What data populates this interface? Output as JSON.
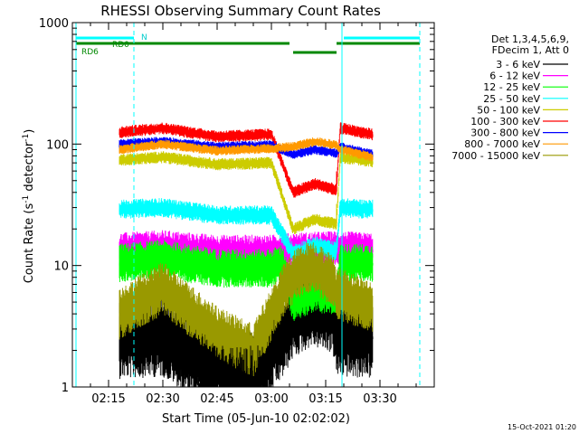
{
  "chart_data": {
    "type": "line",
    "title": "RHESSI Observing Summary Count Rates",
    "xlabel": "Start Time (05-Jun-10 02:02:02)",
    "ylabel_main": "Count Rate (s",
    "ylabel_sup1": "-1",
    "ylabel_mid": " detector",
    "ylabel_sup2": "-1",
    "ylabel_end": ")",
    "y_scale": "log",
    "ylim": [
      1,
      1000
    ],
    "xlim_minutes": [
      125,
      225
    ],
    "x_ticks": [
      {
        "m": 135,
        "label": "02:15"
      },
      {
        "m": 150,
        "label": "02:30"
      },
      {
        "m": 165,
        "label": "02:45"
      },
      {
        "m": 180,
        "label": "03:00"
      },
      {
        "m": 195,
        "label": "03:15"
      },
      {
        "m": 210,
        "label": "03:30"
      }
    ],
    "y_ticks": [
      {
        "v": 1,
        "label": "1"
      },
      {
        "v": 10,
        "label": "10"
      },
      {
        "v": 100,
        "label": "100"
      },
      {
        "v": 1000,
        "label": "1000"
      }
    ],
    "legend_placement": "right",
    "legend_header": [
      "Det 1,3,4,5,6,9,",
      "FDecim 1, Att 0"
    ],
    "data_start_minutes": 138,
    "data_end_minutes": 208,
    "night_start_minutes": 186,
    "night_end_minutes": 198,
    "series": [
      {
        "name": "3 - 6 keV",
        "color": "#000000",
        "curve": [
          [
            138,
            2.6
          ],
          [
            150,
            2.7
          ],
          [
            163,
            1.5
          ],
          [
            175,
            1.3
          ],
          [
            183,
            2.6
          ],
          [
            186,
            3.8
          ],
          [
            191,
            4.8
          ],
          [
            197,
            4.2
          ],
          [
            198,
            2.7
          ],
          [
            208,
            2.6
          ]
        ],
        "jitter": 0.35
      },
      {
        "name": "6 - 12 keV",
        "color": "#ff00ff",
        "curve": [
          [
            138,
            13.5
          ],
          [
            150,
            14.2
          ],
          [
            165,
            13.0
          ],
          [
            180,
            13.0
          ],
          [
            186,
            13.5
          ],
          [
            198,
            14.0
          ],
          [
            208,
            13.5
          ]
        ],
        "jitter": 0.14
      },
      {
        "name": "12 - 25 keV",
        "color": "#00ff00",
        "curve": [
          [
            138,
            10.5
          ],
          [
            150,
            11.3
          ],
          [
            165,
            9.5
          ],
          [
            180,
            9.5
          ],
          [
            183,
            10.5
          ],
          [
            186,
            5.0
          ],
          [
            192,
            6.0
          ],
          [
            198,
            5.5
          ],
          [
            199,
            10.5
          ],
          [
            208,
            10.5
          ]
        ],
        "jitter": 0.16
      },
      {
        "name": "25 - 50 keV",
        "color": "#00ffff",
        "curve": [
          [
            138,
            29
          ],
          [
            150,
            30
          ],
          [
            165,
            26
          ],
          [
            180,
            26
          ],
          [
            186,
            12.5
          ],
          [
            192,
            14.5
          ],
          [
            198,
            13.0
          ],
          [
            199,
            30
          ],
          [
            208,
            29
          ]
        ],
        "jitter": 0.08
      },
      {
        "name": "50 - 100 keV",
        "color": "#cccc00",
        "curve": [
          [
            138,
            74
          ],
          [
            150,
            78
          ],
          [
            165,
            68
          ],
          [
            180,
            70
          ],
          [
            186,
            20
          ],
          [
            192,
            24
          ],
          [
            198,
            22
          ],
          [
            199,
            78
          ],
          [
            208,
            72
          ]
        ],
        "jitter": 0.05
      },
      {
        "name": "100 - 300 keV",
        "color": "#ff0000",
        "curve": [
          [
            138,
            125
          ],
          [
            150,
            135
          ],
          [
            165,
            115
          ],
          [
            180,
            120
          ],
          [
            186,
            40
          ],
          [
            192,
            47
          ],
          [
            198,
            42
          ],
          [
            199,
            135
          ],
          [
            208,
            120
          ]
        ],
        "jitter": 0.05
      },
      {
        "name": "300 - 800 keV",
        "color": "#0000ff",
        "curve": [
          [
            138,
            100
          ],
          [
            150,
            105
          ],
          [
            165,
            95
          ],
          [
            180,
            98
          ],
          [
            186,
            82
          ],
          [
            192,
            90
          ],
          [
            198,
            84
          ],
          [
            199,
            95
          ],
          [
            208,
            82
          ]
        ],
        "jitter": 0.04
      },
      {
        "name": "800 - 7000 keV",
        "color": "#ff9900",
        "curve": [
          [
            138,
            90
          ],
          [
            150,
            100
          ],
          [
            165,
            88
          ],
          [
            180,
            92
          ],
          [
            186,
            95
          ],
          [
            192,
            105
          ],
          [
            198,
            98
          ],
          [
            199,
            90
          ],
          [
            208,
            78
          ]
        ],
        "jitter": 0.04
      },
      {
        "name": "7000 - 15000 keV",
        "color": "#999900",
        "curve": [
          [
            138,
            4.0
          ],
          [
            150,
            6.5
          ],
          [
            165,
            2.8
          ],
          [
            175,
            2.0
          ],
          [
            183,
            6.0
          ],
          [
            186,
            8.0
          ],
          [
            191,
            10.0
          ],
          [
            197,
            7.5
          ],
          [
            198,
            6.0
          ],
          [
            208,
            4.5
          ]
        ],
        "jitter": 0.22
      }
    ],
    "flag_annotations": {
      "saa_label": "N",
      "rd0_label": "RD0",
      "rd6_label": "RD6"
    }
  },
  "footer_date": "15-Oct-2021 01:20"
}
